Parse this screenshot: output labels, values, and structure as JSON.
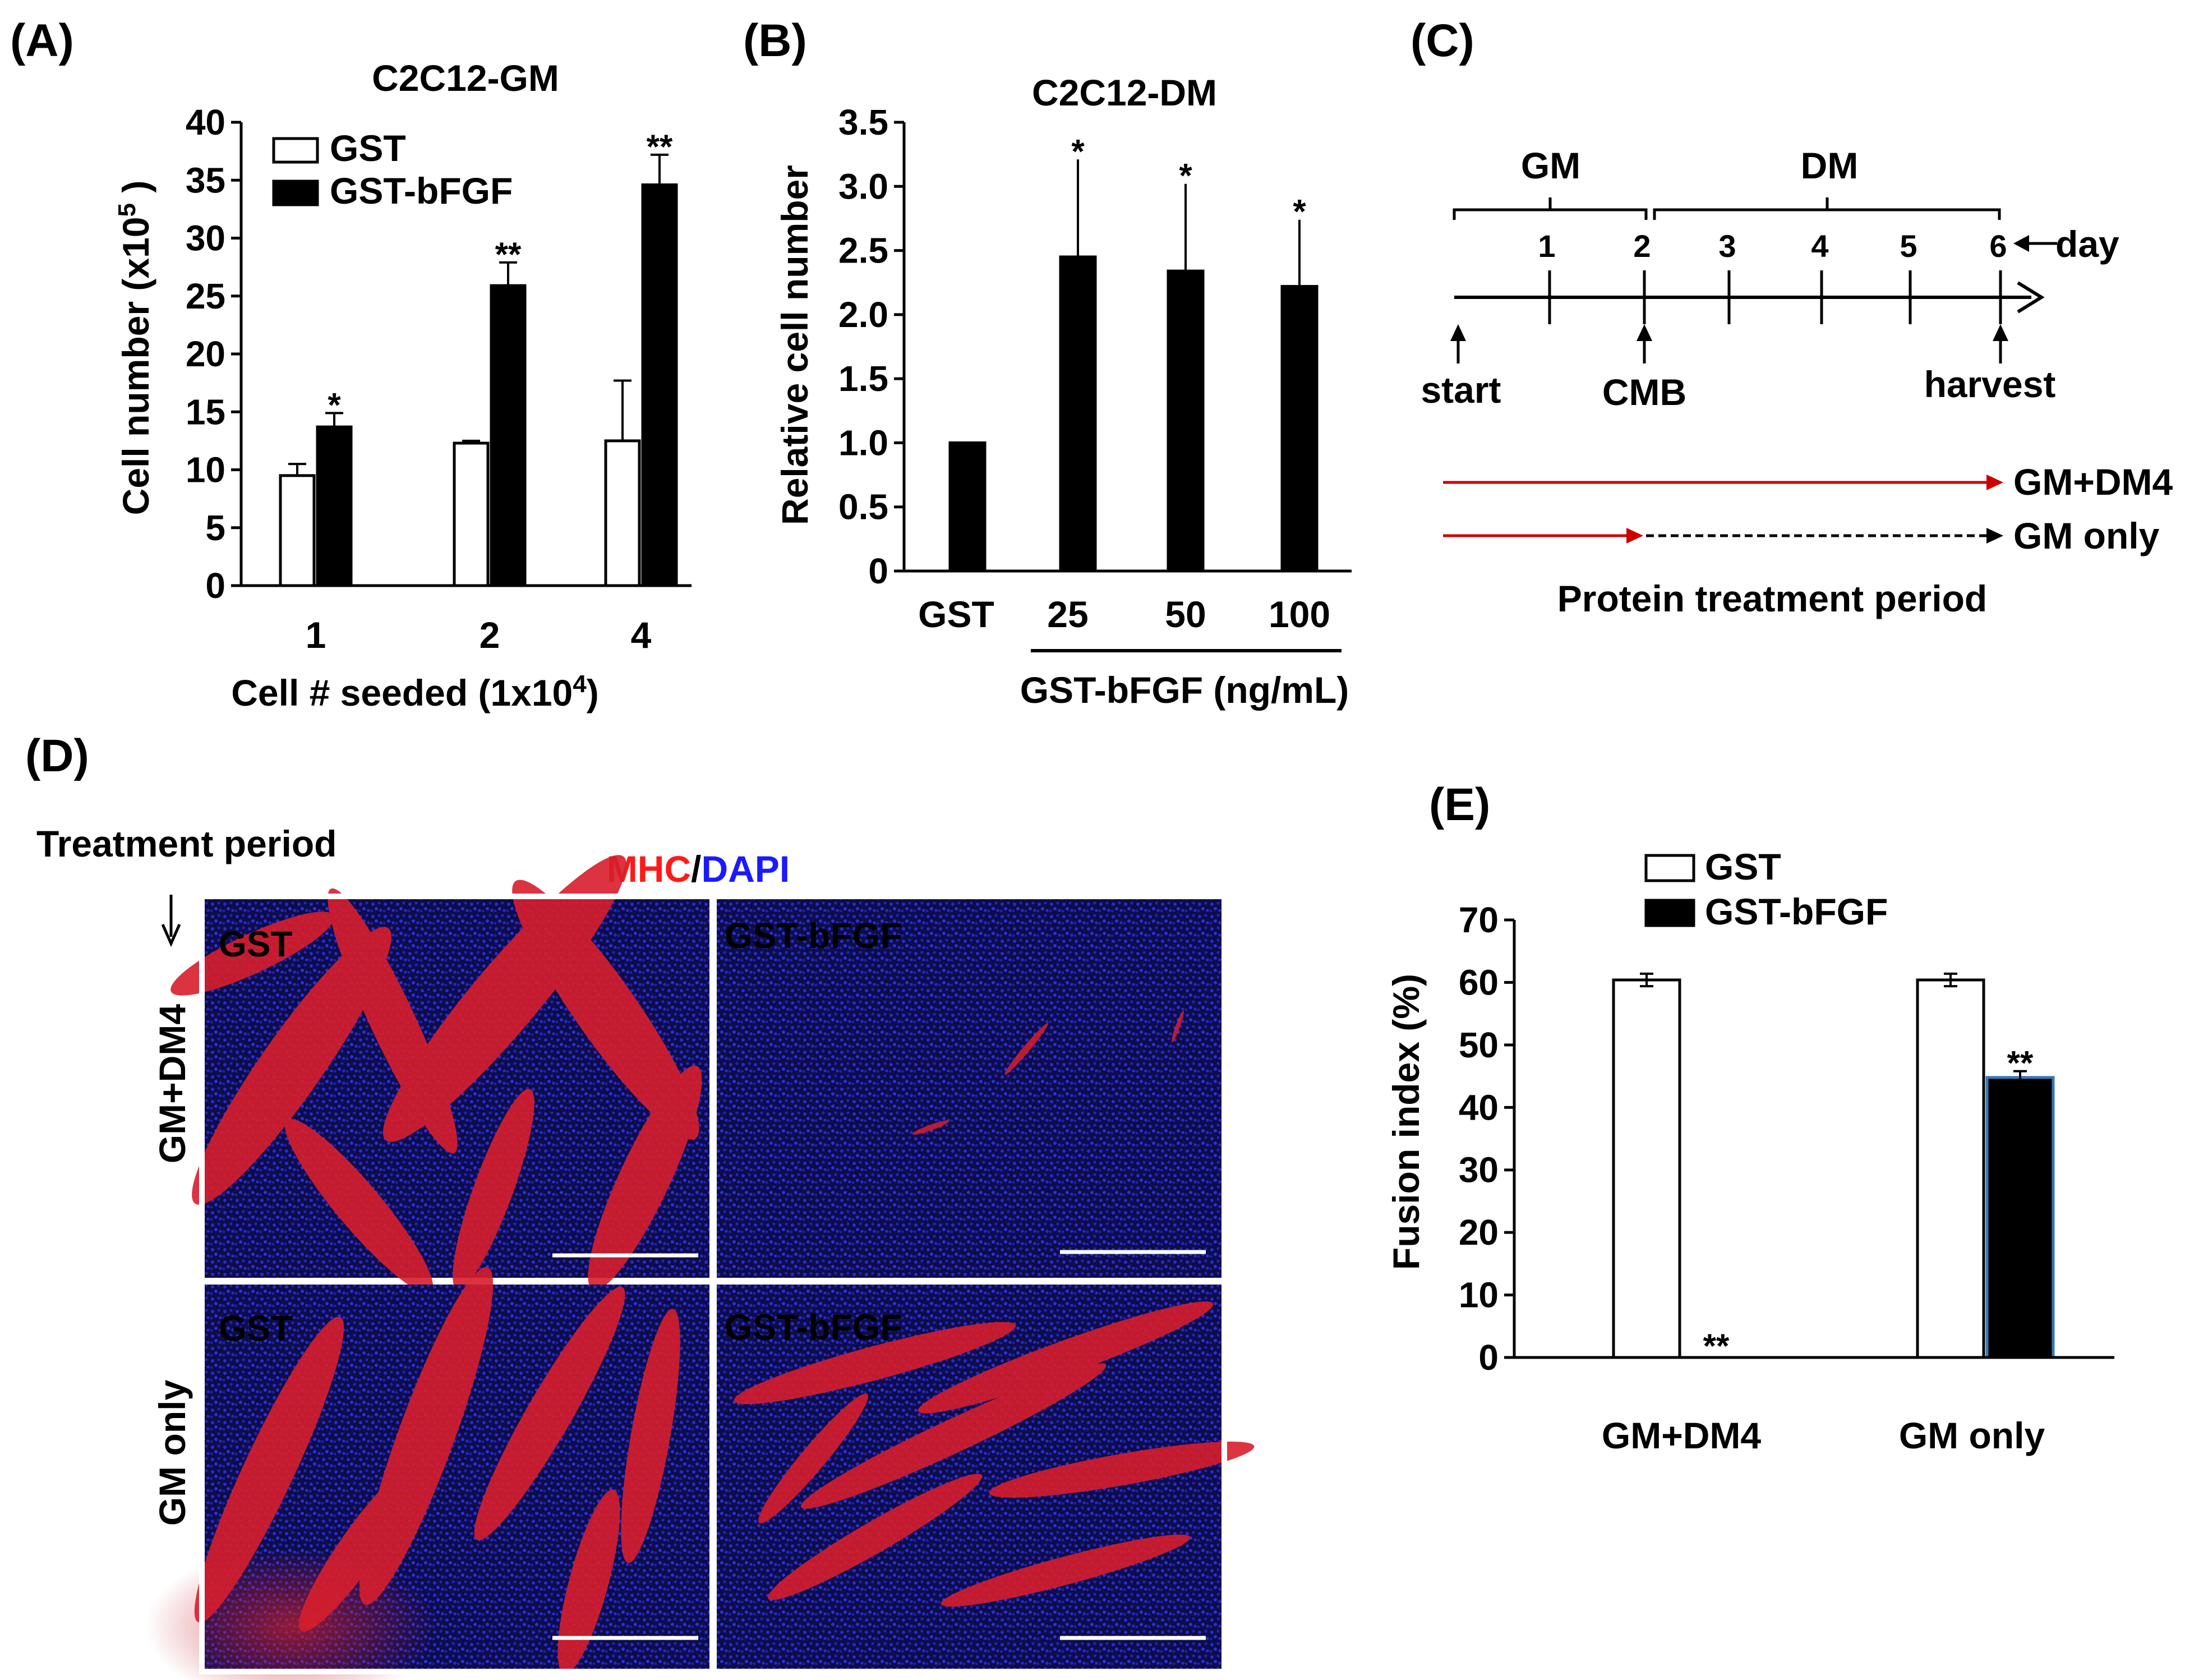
{
  "panel_labels": {
    "a": "(A)",
    "b": "(B)",
    "c": "(C)",
    "d": "(D)",
    "e": "(E)"
  },
  "chart_data": [
    {
      "id": "A",
      "type": "bar",
      "title": "C2C12-GM",
      "xlabel": "Cell # seeded (1x10",
      "xlabel_sup": "4",
      "xlabel_end": ")",
      "ylabel": "Cell number (x10",
      "ylabel_sup": "5",
      "ylabel_end": " )",
      "ylim": [
        0,
        40
      ],
      "yticks": [
        "0",
        "5",
        "10",
        "15",
        "20",
        "25",
        "30",
        "35",
        "40"
      ],
      "categories": [
        "1",
        "2",
        "4"
      ],
      "legend": {
        "position": "top-left"
      },
      "series": [
        {
          "name": "GST",
          "fill": "#ffffff",
          "values": [
            9.5,
            12.3,
            12.5
          ],
          "errors": [
            1.0,
            0.2,
            5.2
          ],
          "sig": [
            "",
            "",
            ""
          ]
        },
        {
          "name": "GST-bFGF",
          "fill": "#000000",
          "values": [
            13.7,
            25.9,
            34.6
          ],
          "errors": [
            1.2,
            2.0,
            2.6
          ],
          "sig": [
            "*",
            "**",
            "**"
          ]
        }
      ]
    },
    {
      "id": "B",
      "type": "bar",
      "title": "C2C12-DM",
      "ylabel": "Relative cell number",
      "xlabel": "GST-bFGF (ng/mL)",
      "ylim": [
        0,
        3.5
      ],
      "yticks": [
        "0",
        "0.5",
        "1.0",
        "1.5",
        "2.0",
        "2.5",
        "3.0",
        "3.5"
      ],
      "categories": [
        "GST",
        "25",
        "50",
        "100"
      ],
      "values": [
        1.0,
        2.45,
        2.34,
        2.22
      ],
      "errors": [
        0.0,
        0.76,
        0.68,
        0.52
      ],
      "sig": [
        "",
        "*",
        "*",
        "*"
      ]
    },
    {
      "id": "E",
      "type": "bar",
      "ylabel": "Fusion index (%)",
      "ylim": [
        0,
        70
      ],
      "yticks": [
        "0",
        "10",
        "20",
        "30",
        "40",
        "50",
        "60",
        "70"
      ],
      "categories": [
        "GM+DM4",
        "GM only"
      ],
      "legend": {
        "position": "top-left"
      },
      "series": [
        {
          "name": "GST",
          "fill": "#ffffff",
          "values": [
            60.4,
            60.4
          ],
          "errors": [
            1.0,
            1.0
          ],
          "sig": [
            "",
            ""
          ]
        },
        {
          "name": "GST-bFGF",
          "fill": "#000000",
          "values": [
            0,
            44.8
          ],
          "errors": [
            0,
            1.0
          ],
          "sig": [
            "**",
            "**"
          ]
        }
      ]
    }
  ],
  "timeline": {
    "gm_label": "GM",
    "dm_label": "DM",
    "days": [
      "1",
      "2",
      "3",
      "4",
      "5",
      "6"
    ],
    "day_label": "day",
    "start_label": "start",
    "cmb_label": "CMB",
    "harvest_label": "harvest",
    "line1_label": "GM+DM4",
    "line2_label": "GM only",
    "period_label": "Protein treatment period",
    "arrow_color": "#cc0000"
  },
  "micrographs": {
    "treatment_label": "Treatment period",
    "stain_mhc": "MHC",
    "stain_sep": "/",
    "stain_dapi": "DAPI",
    "mhc_color": "#ff1a1a",
    "dapi_color": "#1a1aff",
    "label_color": "#ffff00",
    "rows": [
      {
        "label": "GM+DM4",
        "panels": [
          "GST",
          "GST-bFGF"
        ]
      },
      {
        "label": "GM only",
        "panels": [
          "GST",
          "GST-bFGF"
        ]
      }
    ]
  }
}
